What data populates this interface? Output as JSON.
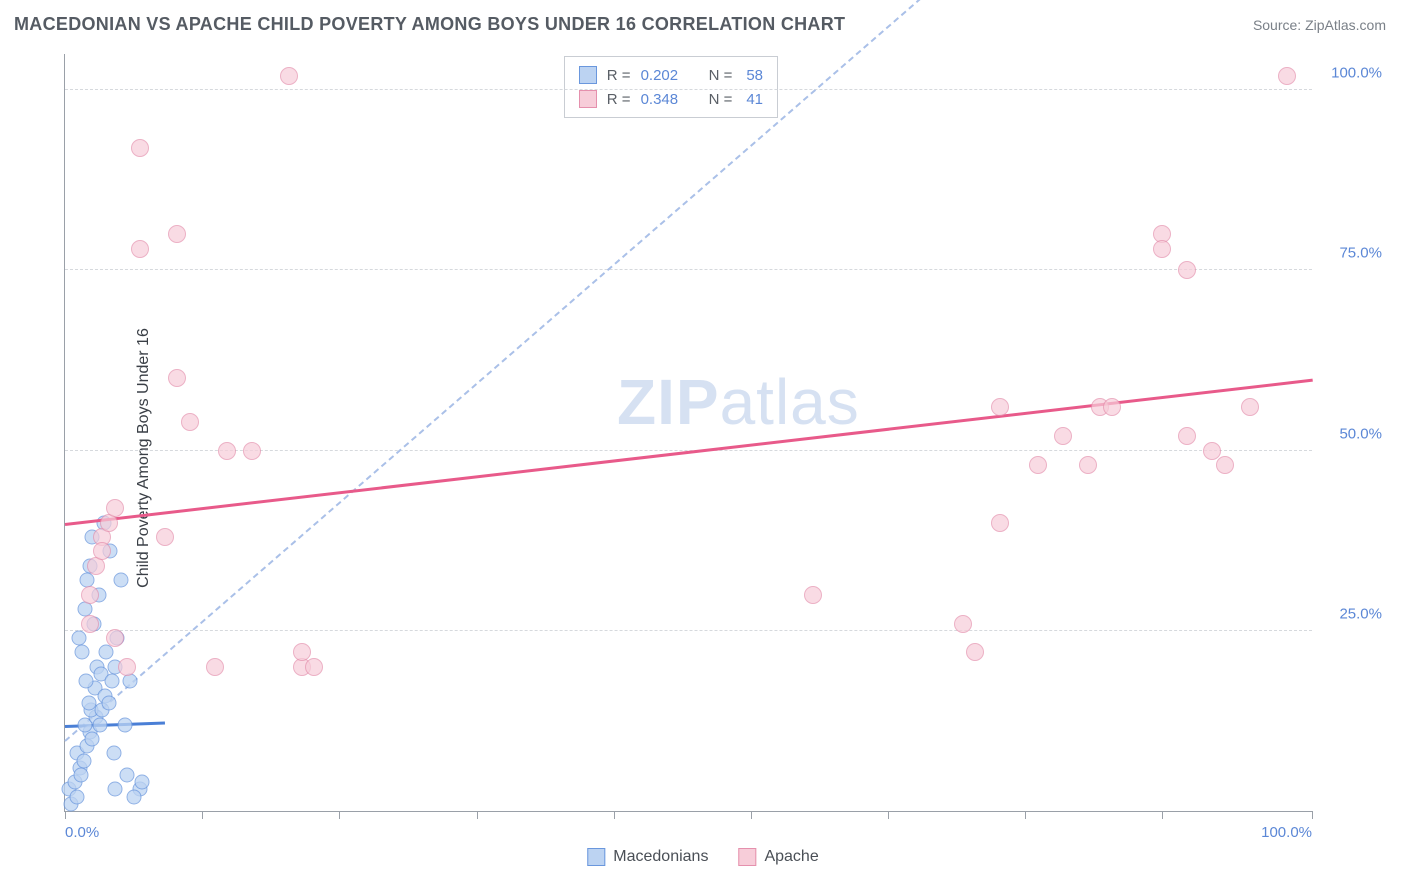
{
  "header": {
    "title": "MACEDONIAN VS APACHE CHILD POVERTY AMONG BOYS UNDER 16 CORRELATION CHART",
    "source": "Source: ZipAtlas.com"
  },
  "chart": {
    "type": "scatter",
    "ylabel": "Child Poverty Among Boys Under 16",
    "xlim": [
      0,
      100
    ],
    "ylim": [
      0,
      105
    ],
    "xticks": [
      0,
      11,
      22,
      33,
      44,
      55,
      66,
      77,
      88,
      100
    ],
    "x_tick_labels": {
      "0": "0.0%",
      "100": "100.0%"
    },
    "y_gridlines": [
      25,
      50,
      75,
      100
    ],
    "y_tick_labels": {
      "25": "25.0%",
      "50": "50.0%",
      "75": "75.0%",
      "100": "100.0%"
    },
    "grid_color": "#d6d9dd",
    "axis_color": "#9aa0a8",
    "tick_label_color": "#5b87d6",
    "background_color": "#ffffff",
    "watermark": {
      "bold": "ZIP",
      "rest": "atlas",
      "color": "#d6e1f2",
      "fontsize": 64
    },
    "series": [
      {
        "name": "Macedonians",
        "marker_fill": "#bcd3f2",
        "marker_stroke": "#6a97dd",
        "marker_size": 15,
        "fill_opacity": 0.75,
        "trend": {
          "y_at_x0": 12,
          "y_at_x100": 18,
          "color": "#4a7fd6",
          "style": "solid",
          "width": 3,
          "x_extent": 8
        },
        "points": [
          [
            0.3,
            3
          ],
          [
            0.5,
            1
          ],
          [
            0.8,
            4
          ],
          [
            1.0,
            2
          ],
          [
            1.2,
            6
          ],
          [
            1.0,
            8
          ],
          [
            1.5,
            7
          ],
          [
            1.3,
            5
          ],
          [
            1.8,
            9
          ],
          [
            2.0,
            11
          ],
          [
            1.6,
            12
          ],
          [
            2.2,
            10
          ],
          [
            2.5,
            13
          ],
          [
            2.1,
            14
          ],
          [
            1.9,
            15
          ],
          [
            2.8,
            12
          ],
          [
            2.4,
            17
          ],
          [
            1.7,
            18
          ],
          [
            3.0,
            14
          ],
          [
            2.6,
            20
          ],
          [
            3.2,
            16
          ],
          [
            1.4,
            22
          ],
          [
            2.9,
            19
          ],
          [
            1.1,
            24
          ],
          [
            3.5,
            15
          ],
          [
            2.3,
            26
          ],
          [
            3.8,
            18
          ],
          [
            1.6,
            28
          ],
          [
            2.7,
            30
          ],
          [
            3.3,
            22
          ],
          [
            4.0,
            20
          ],
          [
            1.8,
            32
          ],
          [
            3.6,
            36
          ],
          [
            2.0,
            34
          ],
          [
            4.0,
            3
          ],
          [
            5.0,
            5
          ],
          [
            6.0,
            3
          ],
          [
            4.5,
            32
          ],
          [
            5.2,
            18
          ],
          [
            3.9,
            8
          ],
          [
            4.8,
            12
          ],
          [
            2.2,
            38
          ],
          [
            3.1,
            40
          ],
          [
            5.5,
            2
          ],
          [
            6.2,
            4
          ],
          [
            4.2,
            24
          ]
        ]
      },
      {
        "name": "Apache",
        "marker_fill": "#f7cdd9",
        "marker_stroke": "#e590ad",
        "marker_size": 18,
        "fill_opacity": 0.7,
        "trend": {
          "y_at_x0": 40,
          "y_at_x100": 60,
          "color": "#e85a8a",
          "style": "solid",
          "width": 3,
          "x_extent": 100
        },
        "points": [
          [
            2,
            26
          ],
          [
            2,
            30
          ],
          [
            2.5,
            34
          ],
          [
            3,
            38
          ],
          [
            3,
            36
          ],
          [
            3.5,
            40
          ],
          [
            4,
            42
          ],
          [
            4,
            24
          ],
          [
            5,
            20
          ],
          [
            6,
            78
          ],
          [
            6,
            92
          ],
          [
            8,
            38
          ],
          [
            9,
            80
          ],
          [
            9,
            60
          ],
          [
            10,
            54
          ],
          [
            12,
            20
          ],
          [
            13,
            50
          ],
          [
            15,
            50
          ],
          [
            18,
            102
          ],
          [
            19,
            20
          ],
          [
            19,
            22
          ],
          [
            20,
            20
          ],
          [
            60,
            30
          ],
          [
            72,
            26
          ],
          [
            73,
            22
          ],
          [
            75,
            40
          ],
          [
            75,
            56
          ],
          [
            78,
            48
          ],
          [
            80,
            52
          ],
          [
            82,
            48
          ],
          [
            83,
            56
          ],
          [
            84,
            56
          ],
          [
            88,
            80
          ],
          [
            88,
            78
          ],
          [
            90,
            52
          ],
          [
            90,
            75
          ],
          [
            92,
            50
          ],
          [
            93,
            48
          ],
          [
            95,
            56
          ],
          [
            98,
            102
          ]
        ]
      }
    ],
    "reference_line": {
      "y_at_x0": 10,
      "y_at_x100": 160,
      "color": "#aac0e8",
      "style": "dashed",
      "width": 2
    },
    "legend_top": {
      "rows": [
        {
          "swatch_fill": "#bcd3f2",
          "swatch_stroke": "#6a97dd",
          "r_label": "R =",
          "r_value": "0.202",
          "n_label": "N =",
          "n_value": "58"
        },
        {
          "swatch_fill": "#f7cdd9",
          "swatch_stroke": "#e590ad",
          "r_label": "R =",
          "r_value": "0.348",
          "n_label": "N =",
          "n_value": "41"
        }
      ]
    },
    "legend_bottom": {
      "items": [
        {
          "swatch_fill": "#bcd3f2",
          "swatch_stroke": "#6a97dd",
          "label": "Macedonians"
        },
        {
          "swatch_fill": "#f7cdd9",
          "swatch_stroke": "#e590ad",
          "label": "Apache"
        }
      ]
    }
  }
}
